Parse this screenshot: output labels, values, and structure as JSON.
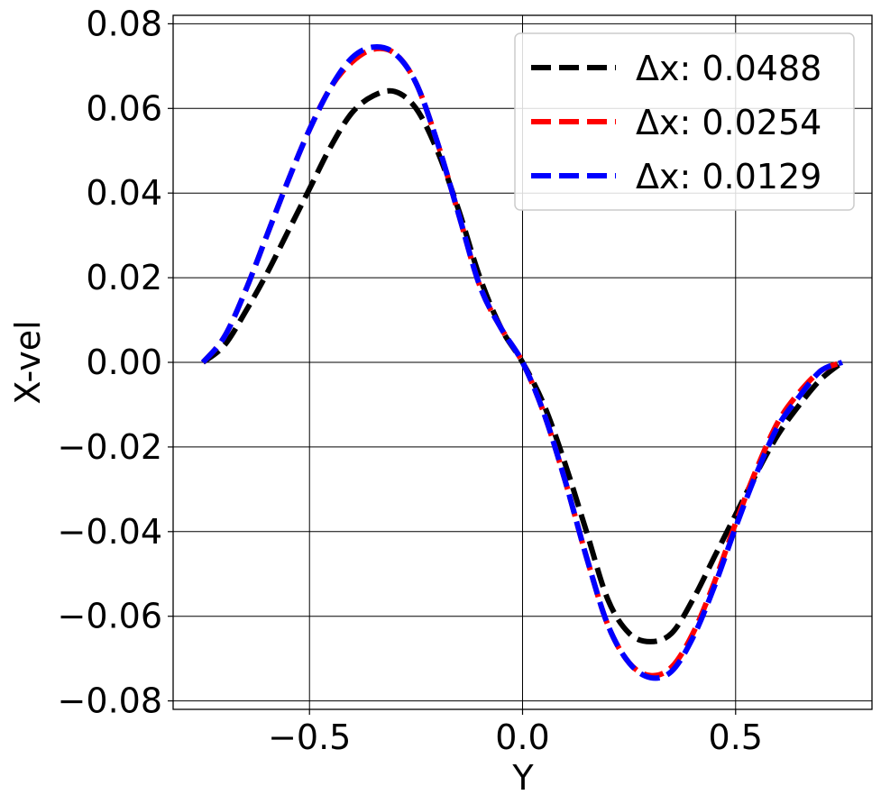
{
  "chart_data": {
    "type": "line",
    "title": "",
    "xlabel": "Y",
    "ylabel": "X-vel",
    "xlim": [
      -0.82,
      0.82
    ],
    "ylim": [
      -0.082,
      0.082
    ],
    "grid": true,
    "legend_position": "top-right",
    "xticks": [
      {
        "value": -0.5,
        "label": "−0.5"
      },
      {
        "value": 0.0,
        "label": "0.0"
      },
      {
        "value": 0.5,
        "label": "0.5"
      }
    ],
    "yticks": [
      {
        "value": 0.08,
        "label": "0.08"
      },
      {
        "value": 0.06,
        "label": "0.06"
      },
      {
        "value": 0.04,
        "label": "0.04"
      },
      {
        "value": 0.02,
        "label": "0.02"
      },
      {
        "value": 0.0,
        "label": "0.00"
      },
      {
        "value": -0.02,
        "label": "−0.02"
      },
      {
        "value": -0.04,
        "label": "−0.04"
      },
      {
        "value": -0.06,
        "label": "−0.06"
      },
      {
        "value": -0.08,
        "label": "−0.08"
      }
    ],
    "x": [
      -0.75,
      -0.7,
      -0.65,
      -0.6,
      -0.55,
      -0.5,
      -0.45,
      -0.4,
      -0.35,
      -0.3,
      -0.25,
      -0.2,
      -0.15,
      -0.1,
      -0.05,
      0.0,
      0.05,
      0.1,
      0.15,
      0.2,
      0.25,
      0.3,
      0.35,
      0.4,
      0.45,
      0.5,
      0.55,
      0.6,
      0.65,
      0.7,
      0.75
    ],
    "series": [
      {
        "name": "Δx: 0.0488",
        "color": "#000000",
        "values": [
          0.0,
          0.004,
          0.012,
          0.021,
          0.031,
          0.041,
          0.051,
          0.059,
          0.063,
          0.064,
          0.06,
          0.05,
          0.036,
          0.02,
          0.008,
          0.0,
          -0.01,
          -0.024,
          -0.04,
          -0.056,
          -0.064,
          -0.066,
          -0.064,
          -0.056,
          -0.046,
          -0.036,
          -0.026,
          -0.017,
          -0.01,
          -0.004,
          0.0
        ]
      },
      {
        "name": "Δx: 0.0254",
        "color": "#ff0000",
        "values": [
          0.0,
          0.006,
          0.017,
          0.03,
          0.043,
          0.055,
          0.065,
          0.071,
          0.074,
          0.073,
          0.066,
          0.052,
          0.035,
          0.018,
          0.008,
          0.0,
          -0.012,
          -0.028,
          -0.046,
          -0.062,
          -0.071,
          -0.074,
          -0.072,
          -0.064,
          -0.052,
          -0.038,
          -0.025,
          -0.014,
          -0.007,
          -0.002,
          0.0
        ]
      },
      {
        "name": "Δx: 0.0129",
        "color": "#0000ff",
        "values": [
          0.0,
          0.006,
          0.017,
          0.03,
          0.043,
          0.055,
          0.065,
          0.072,
          0.0745,
          0.073,
          0.066,
          0.052,
          0.035,
          0.018,
          0.008,
          0.0,
          -0.012,
          -0.028,
          -0.046,
          -0.062,
          -0.071,
          -0.0745,
          -0.073,
          -0.065,
          -0.053,
          -0.039,
          -0.026,
          -0.015,
          -0.008,
          -0.002,
          0.0
        ]
      }
    ]
  }
}
